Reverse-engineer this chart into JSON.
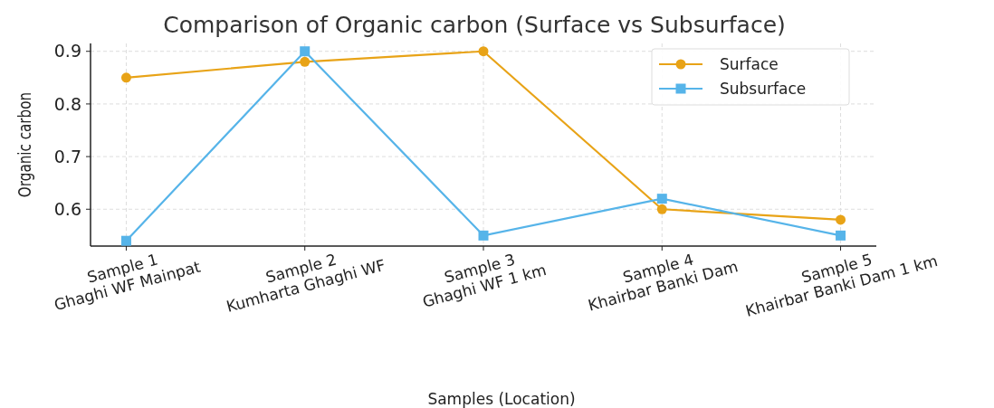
{
  "chart_data": {
    "type": "line",
    "title": "Comparison of Organic carbon (Surface vs Subsurface)",
    "xlabel": "Samples (Location)",
    "ylabel": "Organic carbon",
    "categories": [
      "Sample 1\nGhaghi WF Mainpat",
      "Sample 2\nKumharta Ghaghi WF",
      "Sample 3\nGhaghi WF 1 km",
      "Sample 4\nKhairbar Banki Dam",
      "Sample 5\nKhairbar Banki Dam 1 km"
    ],
    "series": [
      {
        "name": "Surface",
        "color": "#e8a317",
        "marker": "circle",
        "values": [
          0.85,
          0.88,
          0.9,
          0.6,
          0.58
        ]
      },
      {
        "name": "Subsurface",
        "color": "#56b4e9",
        "marker": "square",
        "values": [
          0.54,
          0.9,
          0.55,
          0.62,
          0.55
        ]
      }
    ],
    "ylim": [
      0.53,
      0.915
    ],
    "yticks": [
      {
        "value": 0.6,
        "label": "0.6"
      },
      {
        "value": 0.7,
        "label": "0.7"
      },
      {
        "value": 0.8,
        "label": "0.8"
      },
      {
        "value": 0.9,
        "label": "0.9"
      }
    ],
    "grid": true,
    "legend": "top right",
    "line_style": "solid"
  }
}
